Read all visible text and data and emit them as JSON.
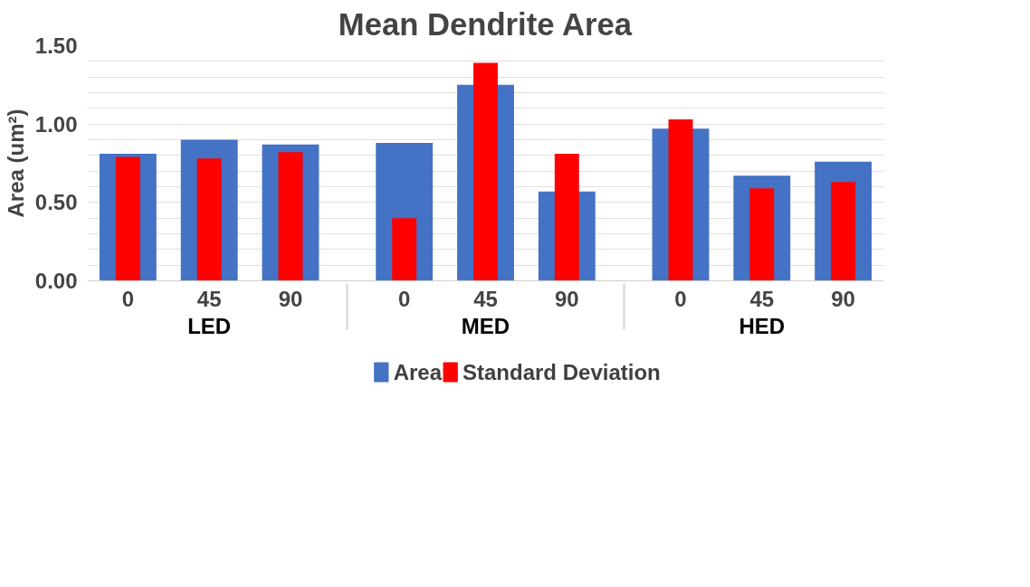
{
  "chart_data": {
    "type": "bar",
    "title": "Mean Dendrite Area",
    "ylabel": "Area (um²)",
    "categories": [
      "0",
      "45",
      "90",
      "0",
      "45",
      "90",
      "0",
      "45",
      "90"
    ],
    "annotations": [
      "LED",
      "MED",
      "HED"
    ],
    "series": [
      {
        "name": "Area",
        "color": "#4472c4",
        "values": [
          0.81,
          0.9,
          0.87,
          0.88,
          1.25,
          0.57,
          0.97,
          0.67,
          0.76
        ]
      },
      {
        "name": "Standard Deviation",
        "color": "#ff0000",
        "values": [
          0.79,
          0.78,
          0.82,
          0.4,
          1.39,
          0.81,
          1.03,
          0.59,
          0.63
        ]
      }
    ],
    "ylim": [
      0,
      1.5
    ],
    "yticks": [
      {
        "value": 0,
        "label": "0.00"
      },
      {
        "value": 0.1,
        "label": null
      },
      {
        "value": 0.2,
        "label": null
      },
      {
        "value": 0.3,
        "label": null
      },
      {
        "value": 0.4,
        "label": null
      },
      {
        "value": 0.5,
        "label": "0.50"
      },
      {
        "value": 0.6,
        "label": null
      },
      {
        "value": 0.7,
        "label": null
      },
      {
        "value": 0.8,
        "label": null
      },
      {
        "value": 0.9,
        "label": null
      },
      {
        "value": 1.0,
        "label": "1.00"
      },
      {
        "value": 1.1,
        "label": null
      },
      {
        "value": 1.2,
        "label": null
      },
      {
        "value": 1.3,
        "label": null
      },
      {
        "value": 1.4,
        "label": null
      },
      {
        "value": 1.5,
        "label": "1.50"
      }
    ],
    "grid": "y",
    "legend": "bottom"
  }
}
